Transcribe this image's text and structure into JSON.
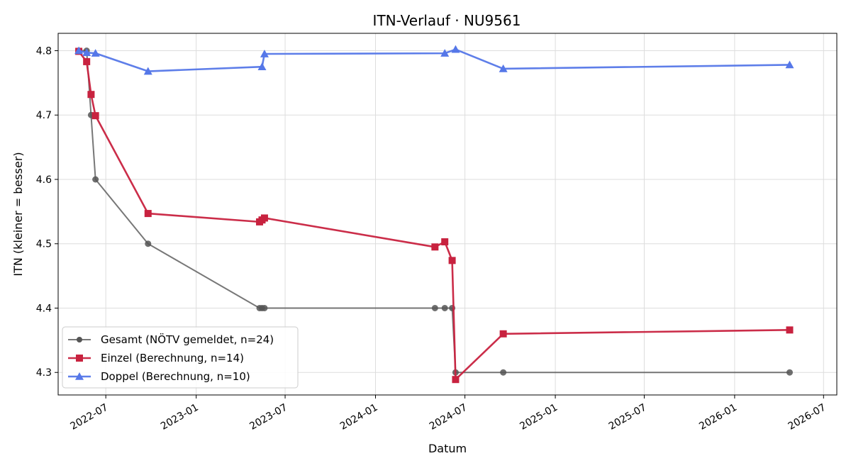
{
  "chart_data": {
    "type": "line",
    "title": "ITN-Verlauf · NU9561",
    "xlabel": "Datum",
    "ylabel": "ITN  (kleiner = besser)",
    "ylim": [
      4.265,
      4.827
    ],
    "xlim": [
      "2022-03-26",
      "2026-07-28"
    ],
    "grid": true,
    "legend_position": "lower-left",
    "x_ticks": [
      "2022-07",
      "2023-01",
      "2023-07",
      "2024-01",
      "2024-07",
      "2025-01",
      "2025-07",
      "2026-01",
      "2026-07"
    ],
    "y_ticks": [
      4.3,
      4.4,
      4.5,
      4.6,
      4.7,
      4.8
    ],
    "series": [
      {
        "name": "Gesamt (NÖTV gemeldet, n=24)",
        "color": "#555555",
        "marker": "circle",
        "line_width": "thin",
        "points": [
          {
            "x": "2022-05-07",
            "y": 4.8
          },
          {
            "x": "2022-05-23",
            "y": 4.8
          },
          {
            "x": "2022-06-01",
            "y": 4.7
          },
          {
            "x": "2022-06-10",
            "y": 4.6
          },
          {
            "x": "2022-09-25",
            "y": 4.5
          },
          {
            "x": "2023-05-10",
            "y": 4.4
          },
          {
            "x": "2023-05-15",
            "y": 4.4
          },
          {
            "x": "2023-05-20",
            "y": 4.4
          },
          {
            "x": "2024-05-01",
            "y": 4.4
          },
          {
            "x": "2024-05-21",
            "y": 4.4
          },
          {
            "x": "2024-06-05",
            "y": 4.4
          },
          {
            "x": "2024-06-12",
            "y": 4.3
          },
          {
            "x": "2024-09-17",
            "y": 4.3
          },
          {
            "x": "2026-04-23",
            "y": 4.3
          }
        ]
      },
      {
        "name": "Einzel (Berechnung, n=14)",
        "color": "#c8223f",
        "marker": "square",
        "line_width": "thick",
        "points": [
          {
            "x": "2022-05-07",
            "y": 4.799
          },
          {
            "x": "2022-05-23",
            "y": 4.783
          },
          {
            "x": "2022-06-01",
            "y": 4.732
          },
          {
            "x": "2022-06-10",
            "y": 4.699
          },
          {
            "x": "2022-09-25",
            "y": 4.547
          },
          {
            "x": "2023-05-10",
            "y": 4.534
          },
          {
            "x": "2023-05-15",
            "y": 4.537
          },
          {
            "x": "2023-05-20",
            "y": 4.54
          },
          {
            "x": "2024-05-01",
            "y": 4.495
          },
          {
            "x": "2024-05-21",
            "y": 4.503
          },
          {
            "x": "2024-06-05",
            "y": 4.474
          },
          {
            "x": "2024-06-12",
            "y": 4.289
          },
          {
            "x": "2024-09-17",
            "y": 4.36
          },
          {
            "x": "2026-04-23",
            "y": 4.366
          }
        ]
      },
      {
        "name": "Doppel (Berechnung, n=10)",
        "color": "#5577e8",
        "marker": "triangle",
        "line_width": "thick",
        "points": [
          {
            "x": "2022-05-07",
            "y": 4.8
          },
          {
            "x": "2022-05-23",
            "y": 4.797
          },
          {
            "x": "2022-06-10",
            "y": 4.796
          },
          {
            "x": "2022-09-25",
            "y": 4.768
          },
          {
            "x": "2023-05-15",
            "y": 4.775
          },
          {
            "x": "2023-05-20",
            "y": 4.795
          },
          {
            "x": "2024-05-21",
            "y": 4.796
          },
          {
            "x": "2024-06-12",
            "y": 4.802
          },
          {
            "x": "2024-09-17",
            "y": 4.772
          },
          {
            "x": "2026-04-23",
            "y": 4.778
          }
        ]
      }
    ]
  }
}
